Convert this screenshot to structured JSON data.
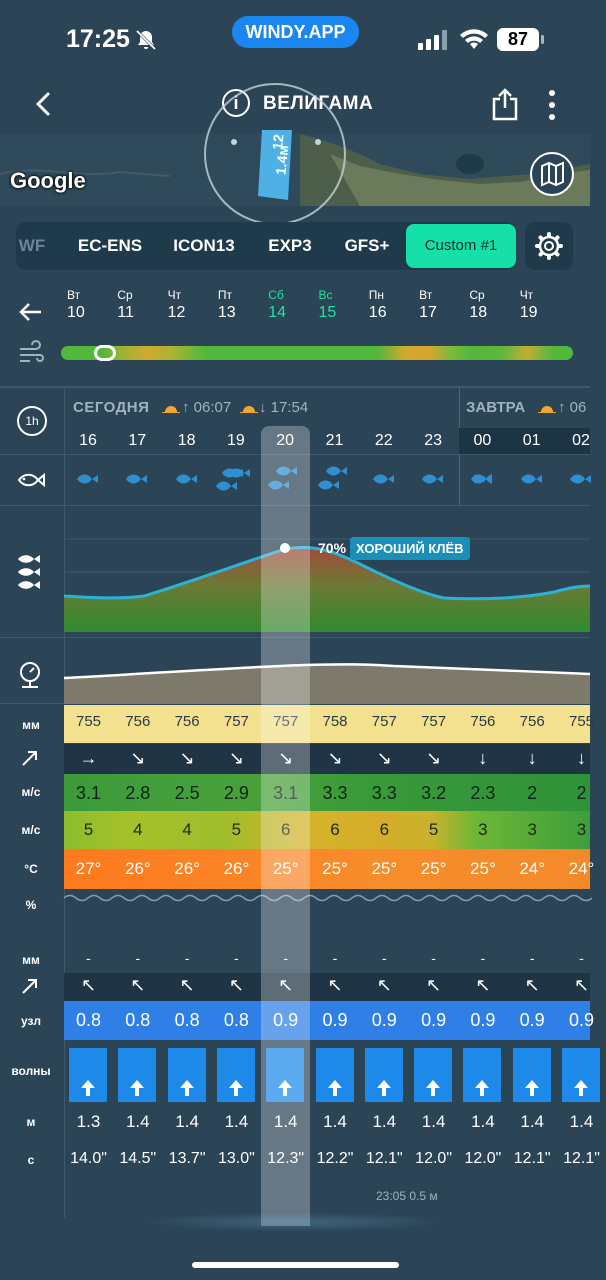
{
  "status": {
    "time": "17:25",
    "app_pill": "WINDY.APP",
    "battery": "87"
  },
  "header": {
    "title": "ВЕЛИГАМА",
    "info": "i"
  },
  "map": {
    "google_label": "Google",
    "marker_height": "1.4м",
    "marker_period": "12"
  },
  "models": {
    "tabs": [
      "WF",
      "EC-ENS",
      "ICON13",
      "EXP3",
      "GFS+"
    ],
    "active": "Custom #1"
  },
  "days": [
    {
      "name": "Вт",
      "date": "10",
      "weekend": false
    },
    {
      "name": "Ср",
      "date": "11",
      "weekend": false
    },
    {
      "name": "Чт",
      "date": "12",
      "weekend": false
    },
    {
      "name": "Пт",
      "date": "13",
      "weekend": false
    },
    {
      "name": "Сб",
      "date": "14",
      "weekend": true
    },
    {
      "name": "Вс",
      "date": "15",
      "weekend": true
    },
    {
      "name": "Пн",
      "date": "16",
      "weekend": false
    },
    {
      "name": "Вт",
      "date": "17",
      "weekend": false
    },
    {
      "name": "Ср",
      "date": "18",
      "weekend": false
    },
    {
      "name": "Чт",
      "date": "19",
      "weekend": false
    }
  ],
  "timeline": {
    "step_label": "1h",
    "today_label": "СЕГОДНЯ",
    "sunrise": "↑ 06:07",
    "sunset": "↓ 17:54",
    "tomorrow_label": "ЗАВТРА",
    "tomorrow_sunrise": "↑ 06",
    "hours": [
      "16",
      "17",
      "18",
      "19",
      "20",
      "21",
      "22",
      "23",
      "00",
      "01",
      "02"
    ]
  },
  "fishing": {
    "percent": "70%",
    "label": "ХОРОШИЙ КЛЁВ"
  },
  "labels": {
    "pressure_unit": "мм",
    "wind_unit": "м/с",
    "gust_unit": "м/с",
    "temp_unit": "°C",
    "precip_pct": "%",
    "precip_unit": "мм",
    "swell_unit": "узл",
    "waves_label": "волны",
    "wave_height_unit": "м",
    "wave_period_unit": "с"
  },
  "pressure": [
    "755",
    "756",
    "756",
    "757",
    "757",
    "758",
    "757",
    "757",
    "756",
    "756",
    "755"
  ],
  "wind_dir": [
    "→",
    "↘",
    "↘",
    "↘",
    "↘",
    "↘",
    "↘",
    "↘",
    "↓",
    "↓",
    "↓"
  ],
  "wind": [
    "3.1",
    "2.8",
    "2.5",
    "2.9",
    "3.1",
    "3.3",
    "3.3",
    "3.2",
    "2.3",
    "2",
    "2"
  ],
  "gust": [
    "5",
    "4",
    "4",
    "5",
    "6",
    "6",
    "6",
    "5",
    "3",
    "3",
    "3"
  ],
  "temp": [
    "27°",
    "26°",
    "26°",
    "26°",
    "25°",
    "25°",
    "25°",
    "25°",
    "25°",
    "24°",
    "24°"
  ],
  "precip": [
    "-",
    "-",
    "-",
    "-",
    "-",
    "-",
    "-",
    "-",
    "-",
    "-",
    "-"
  ],
  "current_dir": [
    "↖",
    "↖",
    "↖",
    "↖",
    "↖",
    "↖",
    "↖",
    "↖",
    "↖",
    "↖",
    "↖"
  ],
  "current_speed": [
    "0.8",
    "0.8",
    "0.8",
    "0.8",
    "0.9",
    "0.9",
    "0.9",
    "0.9",
    "0.9",
    "0.9",
    "0.9"
  ],
  "wave_height": [
    "1.3",
    "1.4",
    "1.4",
    "1.4",
    "1.4",
    "1.4",
    "1.4",
    "1.4",
    "1.4",
    "1.4",
    "1.4"
  ],
  "wave_period": [
    "14.0\"",
    "14.5\"",
    "13.7\"",
    "13.0\"",
    "12.3\"",
    "12.2\"",
    "12.1\"",
    "12.0\"",
    "12.0\"",
    "12.1\"",
    "12.1\""
  ],
  "tide": "23:05 0.5 м",
  "colors": {
    "accent": "#15e0a8",
    "pill": "#1a86f0",
    "bg": "#2b4456",
    "weekend": "#1fe2a0"
  }
}
